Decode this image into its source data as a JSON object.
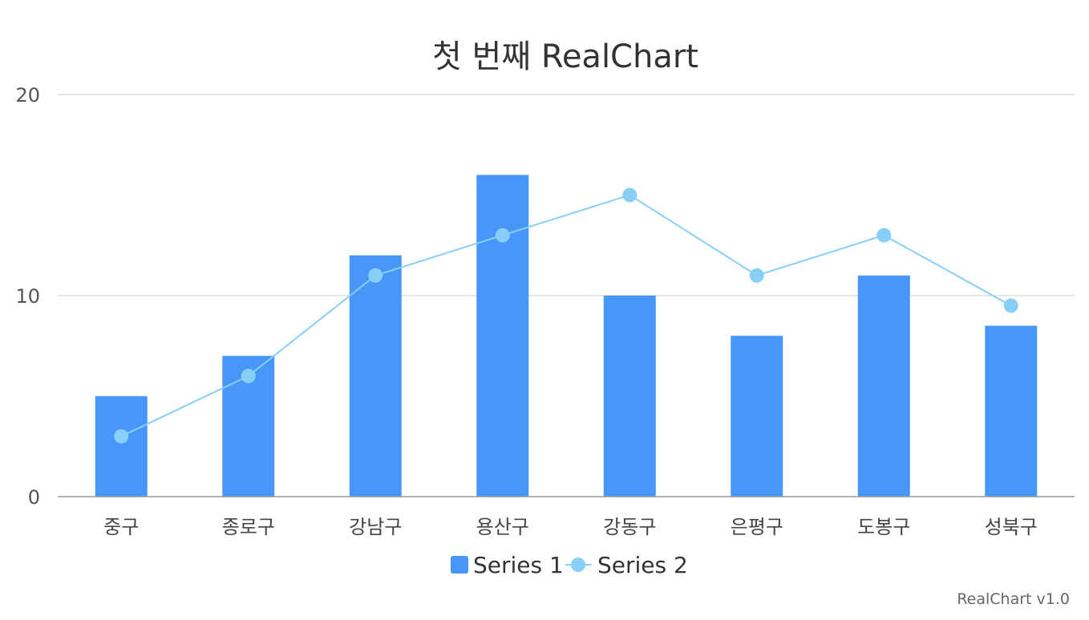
{
  "chart_data": {
    "type": "bar",
    "title": "첫 번째 RealChart",
    "categories": [
      "중구",
      "종로구",
      "강남구",
      "용산구",
      "강동구",
      "은평구",
      "도봉구",
      "성북구"
    ],
    "series": [
      {
        "name": "Series 1",
        "type": "bar",
        "values": [
          5,
          7,
          12,
          16,
          10,
          8,
          11,
          8.5
        ],
        "color": "#4697f7"
      },
      {
        "name": "Series 2",
        "type": "line",
        "values": [
          3,
          6,
          11,
          13,
          15,
          11,
          13,
          9.5
        ],
        "color": "#88cff8"
      }
    ],
    "ylim": [
      0,
      20
    ],
    "yticks": [
      "0",
      "10",
      "20"
    ],
    "grid": true,
    "legend": "bottom"
  },
  "credit": "RealChart v1.0"
}
